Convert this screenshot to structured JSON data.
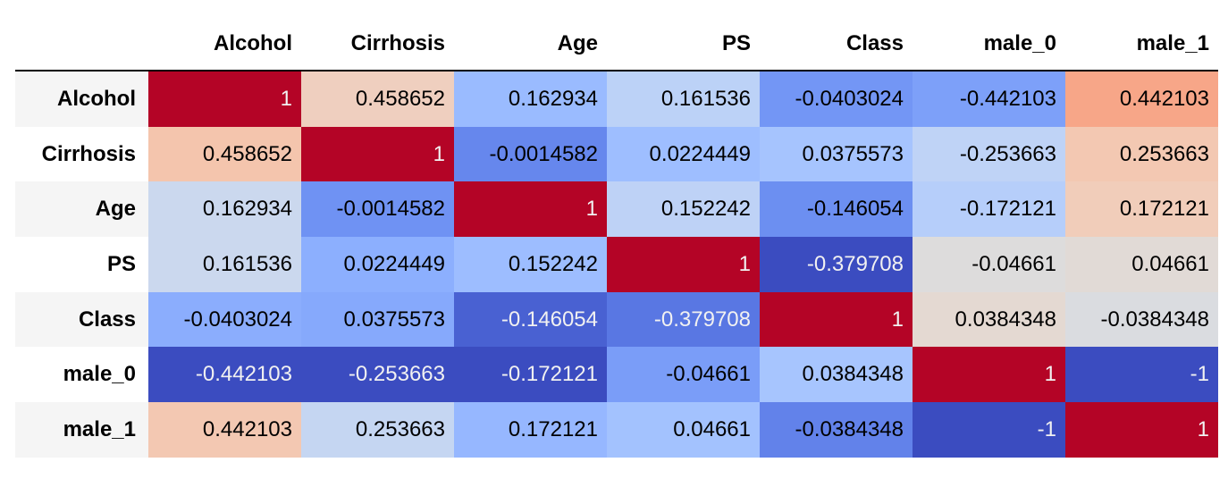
{
  "chart_data": {
    "type": "heatmap",
    "colormap": "coolwarm",
    "vmin": -1,
    "vmax": 1,
    "columns": [
      "Alcohol",
      "Cirrhosis",
      "Age",
      "PS",
      "Class",
      "male_0",
      "male_1"
    ],
    "rows": [
      {
        "label": "Alcohol",
        "values": [
          "1",
          "0.458652",
          "0.162934",
          "0.161536",
          "-0.0403024",
          "-0.442103",
          "0.442103"
        ]
      },
      {
        "label": "Cirrhosis",
        "values": [
          "0.458652",
          "1",
          "-0.0014582",
          "0.0224449",
          "0.0375573",
          "-0.253663",
          "0.253663"
        ]
      },
      {
        "label": "Age",
        "values": [
          "0.162934",
          "-0.0014582",
          "1",
          "0.152242",
          "-0.146054",
          "-0.172121",
          "0.172121"
        ]
      },
      {
        "label": "PS",
        "values": [
          "0.161536",
          "0.0224449",
          "0.152242",
          "1",
          "-0.379708",
          "-0.04661",
          "0.04661"
        ]
      },
      {
        "label": "Class",
        "values": [
          "-0.0403024",
          "0.0375573",
          "-0.146054",
          "-0.379708",
          "1",
          "0.0384348",
          "-0.0384348"
        ]
      },
      {
        "label": "male_0",
        "values": [
          "-0.442103",
          "-0.253663",
          "-0.172121",
          "-0.04661",
          "0.0384348",
          "1",
          "-1"
        ]
      },
      {
        "label": "male_1",
        "values": [
          "0.442103",
          "0.253663",
          "0.172121",
          "0.04661",
          "-0.0384348",
          "-1",
          "1"
        ]
      }
    ],
    "cell_colors": [
      [
        "#b40426",
        "#efcfbf",
        "#9abbff",
        "#bcd2f7",
        "#7396f5",
        "#7da0f9",
        "#f7a688"
      ],
      [
        "#f4c5ad",
        "#b40426",
        "#6687ed",
        "#9ebeff",
        "#a6c4fe",
        "#bfd3f6",
        "#f3c8b2"
      ],
      [
        "#cbd8ee",
        "#6f92f3",
        "#b40426",
        "#bed2f6",
        "#6c8ff1",
        "#b6cefa",
        "#f1cdba"
      ],
      [
        "#cbd8ee",
        "#8caffe",
        "#9dbdff",
        "#b40426",
        "#3b4cc0",
        "#dddcdc",
        "#e1dad6"
      ],
      [
        "#8badfd",
        "#86a9fc",
        "#4961d2",
        "#5977e3",
        "#b40426",
        "#e4d9d2",
        "#dadce0"
      ],
      [
        "#3b4cc0",
        "#3b4cc0",
        "#3b4cc0",
        "#7a9df8",
        "#a7c5fe",
        "#b40426",
        "#3b4cc0"
      ],
      [
        "#f3c8b2",
        "#c5d6f2",
        "#96b7ff",
        "#a3c2fe",
        "#6282ea",
        "#3b4cc0",
        "#b40426"
      ]
    ],
    "text_colors": [
      [
        "#f1f1f1",
        "#000000",
        "#000000",
        "#000000",
        "#000000",
        "#000000",
        "#000000"
      ],
      [
        "#000000",
        "#f1f1f1",
        "#000000",
        "#000000",
        "#000000",
        "#000000",
        "#000000"
      ],
      [
        "#000000",
        "#000000",
        "#f1f1f1",
        "#000000",
        "#000000",
        "#000000",
        "#000000"
      ],
      [
        "#000000",
        "#000000",
        "#000000",
        "#f1f1f1",
        "#f1f1f1",
        "#000000",
        "#000000"
      ],
      [
        "#000000",
        "#000000",
        "#f1f1f1",
        "#f1f1f1",
        "#f1f1f1",
        "#000000",
        "#000000"
      ],
      [
        "#f1f1f1",
        "#f1f1f1",
        "#f1f1f1",
        "#000000",
        "#000000",
        "#f1f1f1",
        "#f1f1f1"
      ],
      [
        "#000000",
        "#000000",
        "#000000",
        "#000000",
        "#000000",
        "#f1f1f1",
        "#f1f1f1"
      ]
    ]
  }
}
